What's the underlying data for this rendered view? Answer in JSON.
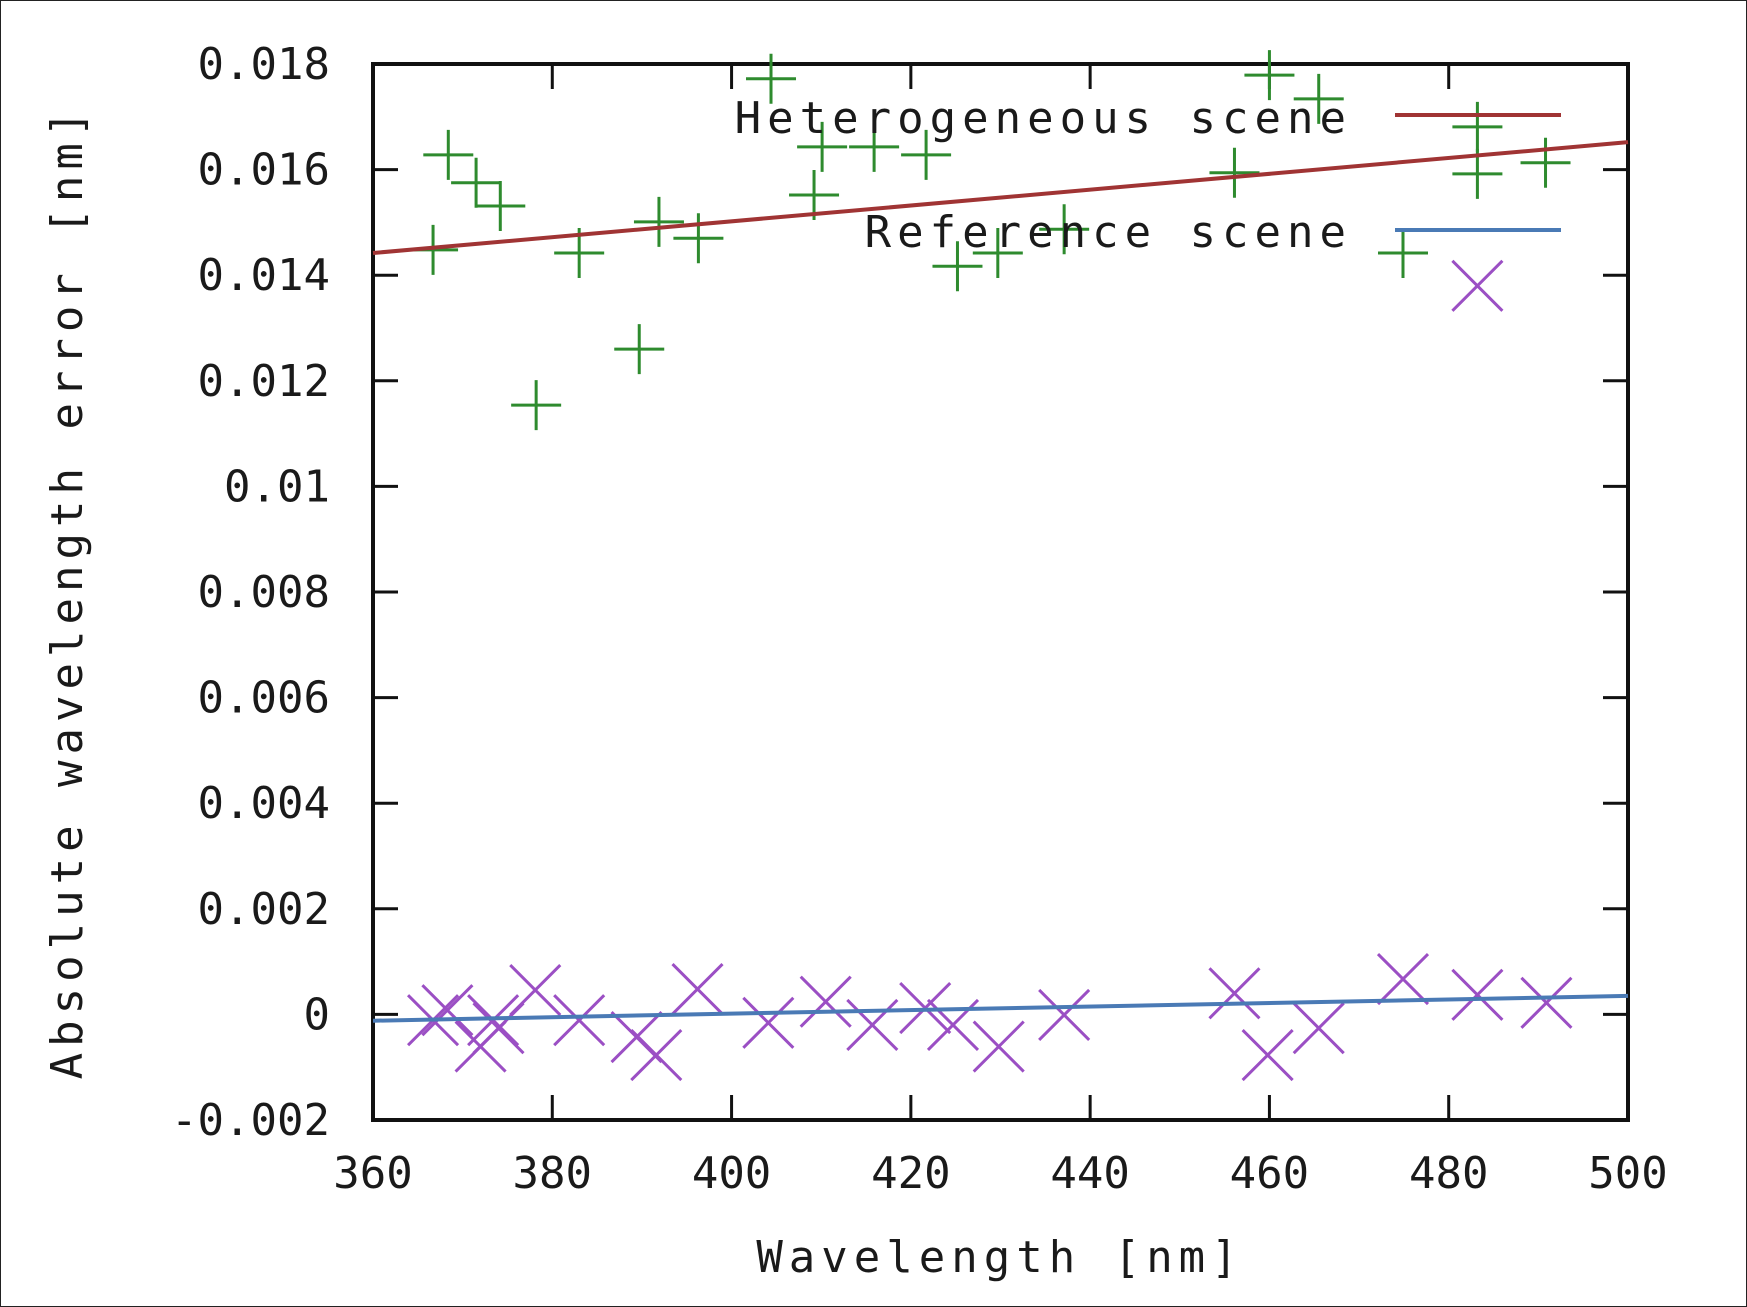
{
  "chart_data": {
    "type": "scatter",
    "title": "",
    "xlabel": "Wavelength [nm]",
    "ylabel": "Absolute wavelength error [nm]",
    "xlim": [
      360,
      500
    ],
    "ylim": [
      -0.002,
      0.018
    ],
    "x_ticks": [
      360,
      380,
      400,
      420,
      440,
      460,
      480,
      500
    ],
    "x_tick_labels": [
      "360",
      "380",
      "400",
      "420",
      "440",
      "460",
      "480",
      "500"
    ],
    "y_ticks": [
      -0.002,
      0,
      0.002,
      0.004,
      0.006,
      0.008,
      0.01,
      0.012,
      0.014,
      0.016,
      0.018
    ],
    "y_tick_labels": [
      "-0.002",
      "0",
      "0.002",
      "0.004",
      "0.006",
      "0.008",
      "0.01",
      "0.012",
      "0.014",
      "0.016",
      "0.018"
    ],
    "grid": false,
    "legend_position": "upper right (inside)",
    "legend": [
      {
        "label": "Heterogeneous scene",
        "color": "#a03434",
        "style": "line"
      },
      {
        "label": "Reference scene",
        "color": "#4a7ab5",
        "style": "line"
      }
    ],
    "series": [
      {
        "name": "Heterogeneous scene (points)",
        "marker": "plus",
        "color": "#2e8b2e",
        "points": [
          [
            366.7,
            0.01448
          ],
          [
            368.4,
            0.01628
          ],
          [
            371.5,
            0.01575
          ],
          [
            374.2,
            0.01531
          ],
          [
            378.2,
            0.01154
          ],
          [
            383.0,
            0.01442
          ],
          [
            389.7,
            0.0126
          ],
          [
            391.9,
            0.01501
          ],
          [
            396.3,
            0.0147
          ],
          [
            404.4,
            0.01772
          ],
          [
            409.2,
            0.01552
          ],
          [
            410.1,
            0.01643
          ],
          [
            415.9,
            0.01643
          ],
          [
            421.7,
            0.01628
          ],
          [
            425.2,
            0.01417
          ],
          [
            429.7,
            0.01442
          ],
          [
            437.1,
            0.01487
          ],
          [
            456.1,
            0.01594
          ],
          [
            460.0,
            0.01779
          ],
          [
            465.5,
            0.01734
          ],
          [
            474.9,
            0.01442
          ],
          [
            483.2,
            0.01681
          ],
          [
            483.2,
            0.01592
          ],
          [
            490.8,
            0.01613
          ]
        ]
      },
      {
        "name": "Heterogeneous scene",
        "style": "line",
        "color": "#a03434",
        "points": [
          [
            360,
            0.01442
          ],
          [
            500,
            0.01652
          ]
        ]
      },
      {
        "name": "Reference scene (points)",
        "marker": "cross",
        "color": "#9b4fc4",
        "points": [
          [
            366.7,
            -0.00011
          ],
          [
            368.3,
            8e-05
          ],
          [
            372.0,
            -0.00061
          ],
          [
            373.4,
            -0.00011
          ],
          [
            374.0,
            -0.00026
          ],
          [
            378.1,
            0.00046
          ],
          [
            383.0,
            -0.00011
          ],
          [
            389.4,
            -0.00043
          ],
          [
            391.6,
            -0.00077
          ],
          [
            396.2,
            0.00048
          ],
          [
            404.1,
            -0.00016
          ],
          [
            410.5,
            0.00024
          ],
          [
            415.7,
            -0.0002
          ],
          [
            421.6,
            0.00012
          ],
          [
            424.7,
            -0.0002
          ],
          [
            429.8,
            -0.00061
          ],
          [
            437.1,
            -1e-05
          ],
          [
            456.1,
            0.0004
          ],
          [
            459.8,
            -0.00077
          ],
          [
            465.5,
            -0.00026
          ],
          [
            474.9,
            0.00067
          ],
          [
            483.2,
            0.00037
          ],
          [
            483.2,
            0.0138
          ],
          [
            490.9,
            0.00022
          ]
        ]
      },
      {
        "name": "Reference scene",
        "style": "line",
        "color": "#4a7ab5",
        "points": [
          [
            360,
            -0.00012
          ],
          [
            500,
            0.00035
          ]
        ]
      }
    ]
  }
}
